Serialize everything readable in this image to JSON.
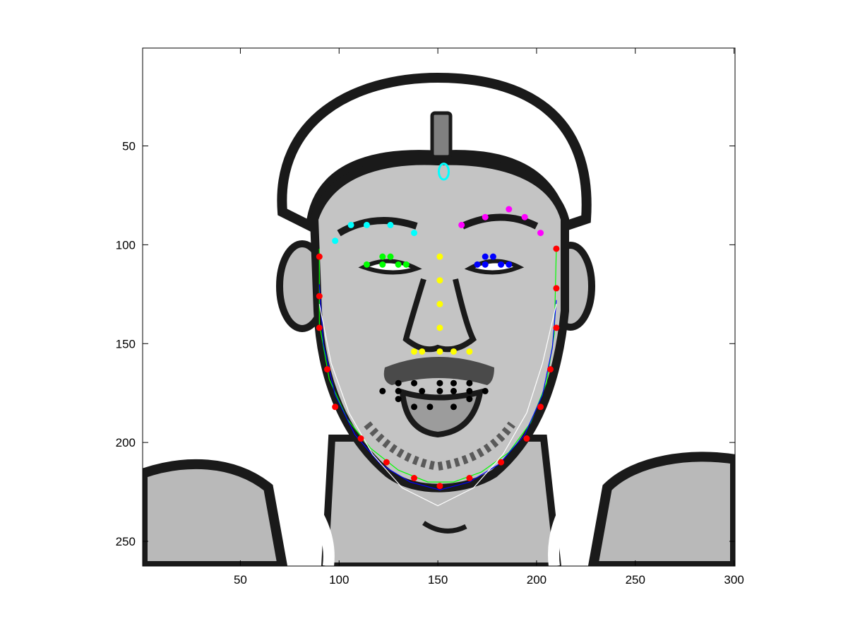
{
  "chart_data": {
    "type": "scatter",
    "title": "",
    "xlabel": "",
    "ylabel": "",
    "xlim": [
      0.5,
      300.5
    ],
    "ylim": [
      0.5,
      262.5
    ],
    "y_reversed": true,
    "grid": false,
    "legend": "none",
    "background_image": "grayscale-face-illustration",
    "x_ticks": [
      {
        "value": 50,
        "label": "50"
      },
      {
        "value": 100,
        "label": "100"
      },
      {
        "value": 150,
        "label": "150"
      },
      {
        "value": 200,
        "label": "200"
      },
      {
        "value": 250,
        "label": "250"
      },
      {
        "value": 300,
        "label": "300"
      }
    ],
    "y_ticks": [
      {
        "value": 50,
        "label": "50"
      },
      {
        "value": 100,
        "label": "100"
      },
      {
        "value": 150,
        "label": "150"
      },
      {
        "value": 200,
        "label": "200"
      },
      {
        "value": 250,
        "label": "250"
      }
    ],
    "series": [
      {
        "color": "#ff0000",
        "kind": "points",
        "points": [
          [
            90,
            106
          ],
          [
            90,
            126
          ],
          [
            90,
            142
          ],
          [
            94,
            163
          ],
          [
            98,
            182
          ],
          [
            111,
            198
          ],
          [
            124,
            210
          ],
          [
            138,
            218
          ],
          [
            151,
            222
          ],
          [
            166,
            218
          ],
          [
            182,
            210
          ],
          [
            195,
            198
          ],
          [
            202,
            182
          ],
          [
            207,
            163
          ],
          [
            210,
            142
          ],
          [
            210,
            122
          ],
          [
            210,
            102
          ]
        ]
      },
      {
        "color": "#00ffff",
        "kind": "points",
        "points": [
          [
            98,
            98
          ],
          [
            106,
            90
          ],
          [
            114,
            90
          ],
          [
            126,
            90
          ],
          [
            138,
            94
          ]
        ]
      },
      {
        "color": "#ff00ff",
        "kind": "points",
        "points": [
          [
            162,
            90
          ],
          [
            174,
            86
          ],
          [
            186,
            82
          ],
          [
            194,
            86
          ],
          [
            202,
            94
          ]
        ]
      },
      {
        "color": "#00ff00",
        "kind": "points",
        "points": [
          [
            114,
            110
          ],
          [
            122,
            106
          ],
          [
            126,
            106
          ],
          [
            130,
            110
          ],
          [
            134,
            110
          ],
          [
            122,
            110
          ]
        ]
      },
      {
        "color": "#0000ff",
        "kind": "points",
        "points": [
          [
            170,
            110
          ],
          [
            174,
            106
          ],
          [
            178,
            106
          ],
          [
            182,
            110
          ],
          [
            186,
            110
          ],
          [
            174,
            110
          ]
        ]
      },
      {
        "color": "#ffff00",
        "kind": "points",
        "points": [
          [
            151,
            106
          ],
          [
            151,
            118
          ],
          [
            151,
            130
          ],
          [
            151,
            142
          ],
          [
            138,
            154
          ],
          [
            142,
            154
          ],
          [
            151,
            154
          ],
          [
            158,
            154
          ],
          [
            166,
            154
          ]
        ]
      },
      {
        "color": "#000000",
        "kind": "points",
        "points": [
          [
            122,
            174
          ],
          [
            130,
            170
          ],
          [
            130,
            174
          ],
          [
            130,
            178
          ],
          [
            138,
            170
          ],
          [
            138,
            182
          ],
          [
            146,
            182
          ],
          [
            151,
            170
          ],
          [
            158,
            170
          ],
          [
            158,
            182
          ],
          [
            166,
            170
          ],
          [
            166,
            178
          ],
          [
            174,
            174
          ],
          [
            142,
            174
          ],
          [
            151,
            174
          ],
          [
            158,
            174
          ],
          [
            166,
            174
          ]
        ]
      },
      {
        "color": "#00ff00",
        "kind": "curve",
        "points": [
          [
            90,
            102
          ],
          [
            90,
            140
          ],
          [
            95,
            168
          ],
          [
            104,
            188
          ],
          [
            116,
            203
          ],
          [
            130,
            214
          ],
          [
            145,
            220
          ],
          [
            158,
            220
          ],
          [
            172,
            215
          ],
          [
            186,
            205
          ],
          [
            197,
            190
          ],
          [
            205,
            170
          ],
          [
            209,
            145
          ],
          [
            210,
            102
          ]
        ]
      },
      {
        "color": "#0000ff",
        "kind": "curve",
        "points": [
          [
            90,
            120
          ],
          [
            92,
            150
          ],
          [
            98,
            176
          ],
          [
            108,
            196
          ],
          [
            121,
            211
          ],
          [
            136,
            220
          ],
          [
            151,
            224
          ],
          [
            166,
            220
          ],
          [
            181,
            211
          ],
          [
            194,
            196
          ],
          [
            203,
            176
          ],
          [
            208,
            152
          ],
          [
            210,
            128
          ]
        ]
      },
      {
        "color": "#ffffff",
        "kind": "curve",
        "points": [
          [
            90,
            130
          ],
          [
            96,
            160
          ],
          [
            105,
            185
          ],
          [
            117,
            206
          ],
          [
            132,
            223
          ],
          [
            150,
            232
          ],
          [
            168,
            223
          ],
          [
            183,
            206
          ],
          [
            195,
            185
          ],
          [
            203,
            160
          ],
          [
            210,
            130
          ]
        ]
      },
      {
        "color": "#00ffff",
        "kind": "ellipse",
        "center": [
          153,
          63
        ],
        "radius": [
          2.5,
          4
        ]
      }
    ]
  }
}
